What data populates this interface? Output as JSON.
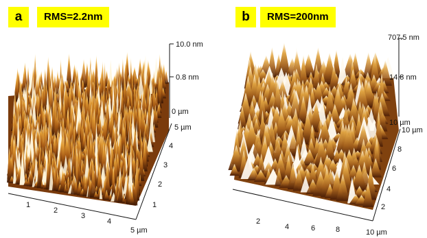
{
  "panels": [
    {
      "letter": "a",
      "rms": "RMS=2.2nm",
      "z_top": "10.0 nm",
      "z_mid": "0.8 nm",
      "z_zero": "0 µm",
      "x_ticks": [
        "1",
        "2",
        "3",
        "4",
        "5 µm"
      ],
      "y_ticks": [
        "1",
        "2",
        "3",
        "4",
        "5 µm"
      ]
    },
    {
      "letter": "b",
      "rms": "RMS=200nm",
      "z_top": "707.5 nm",
      "z_mid": "14.8 nm",
      "z_zero": "10 µm",
      "x_ticks": [
        "2",
        "4",
        "6",
        "8",
        "10 µm"
      ],
      "y_ticks": [
        "2",
        "4",
        "6",
        "8",
        "10 µm"
      ]
    }
  ]
}
